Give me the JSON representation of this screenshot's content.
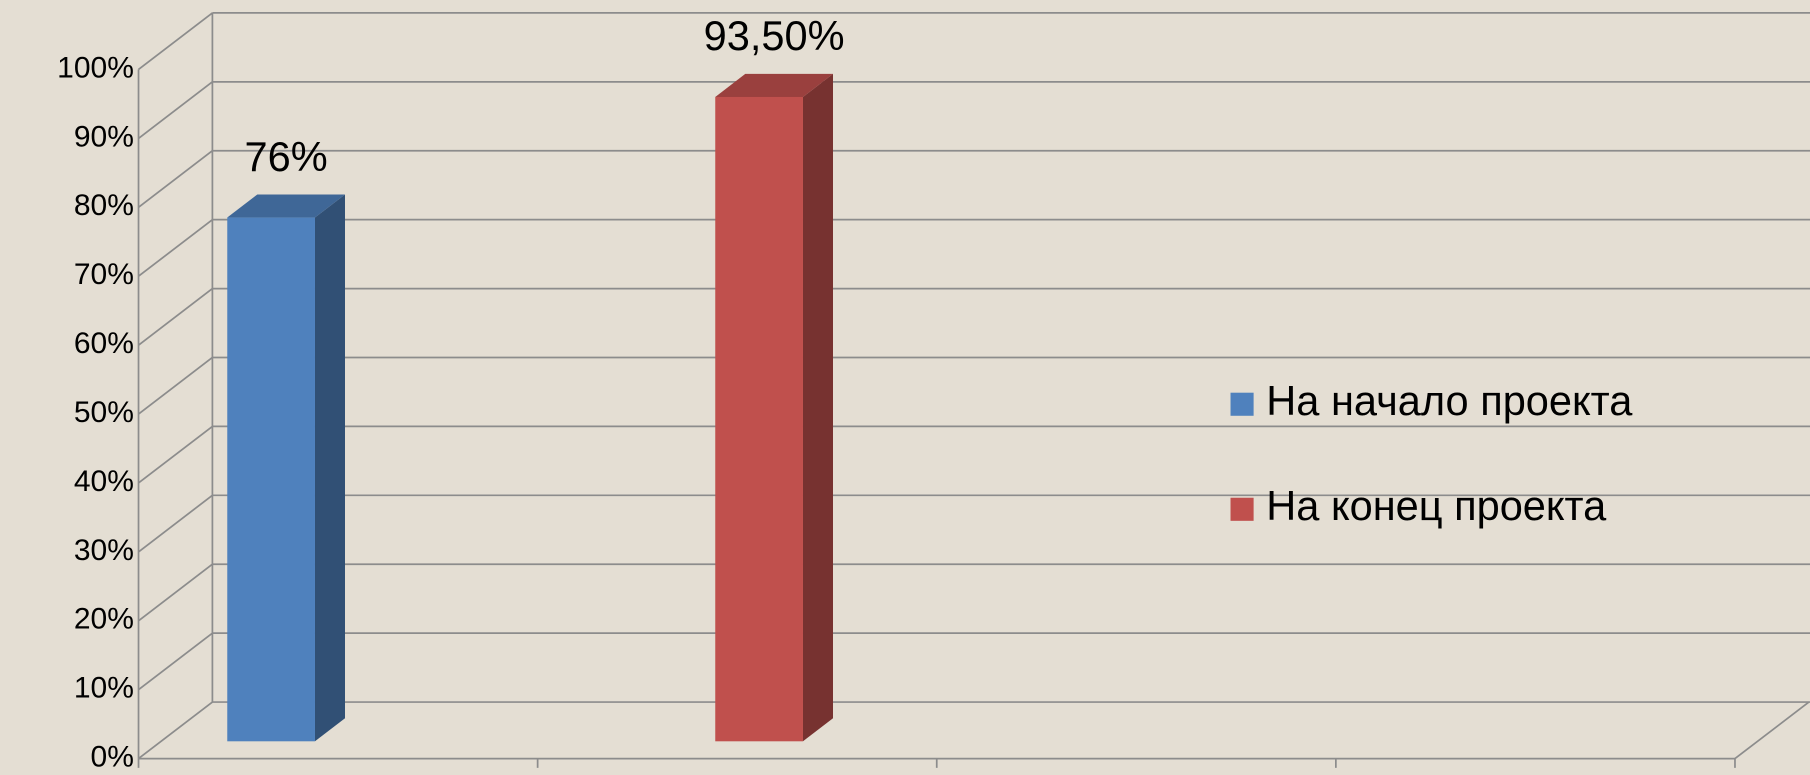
{
  "chart_data": {
    "type": "bar3d",
    "categories": [
      null,
      null,
      null,
      null
    ],
    "series": [
      {
        "name": "На начало проекта",
        "color": "#4f81bd",
        "values": [
          76,
          null,
          null,
          null
        ],
        "value_labels": [
          "76%",
          null,
          null,
          null
        ]
      },
      {
        "name": "На конец проекта",
        "color": "#c0504d",
        "values": [
          null,
          93.5,
          null,
          null
        ],
        "value_labels": [
          null,
          "93,50%",
          null,
          null
        ]
      }
    ],
    "ylim": [
      0,
      100
    ],
    "yticks": [
      {
        "value": 0,
        "label": "0%"
      },
      {
        "value": 10,
        "label": "10%"
      },
      {
        "value": 20,
        "label": "20%"
      },
      {
        "value": 30,
        "label": "30%"
      },
      {
        "value": 40,
        "label": "40%"
      },
      {
        "value": 50,
        "label": "50%"
      },
      {
        "value": 60,
        "label": "60%"
      },
      {
        "value": 70,
        "label": "70%"
      },
      {
        "value": 80,
        "label": "80%"
      },
      {
        "value": 90,
        "label": "90%"
      },
      {
        "value": 100,
        "label": "100%"
      }
    ],
    "grid": true,
    "legend": "right"
  }
}
